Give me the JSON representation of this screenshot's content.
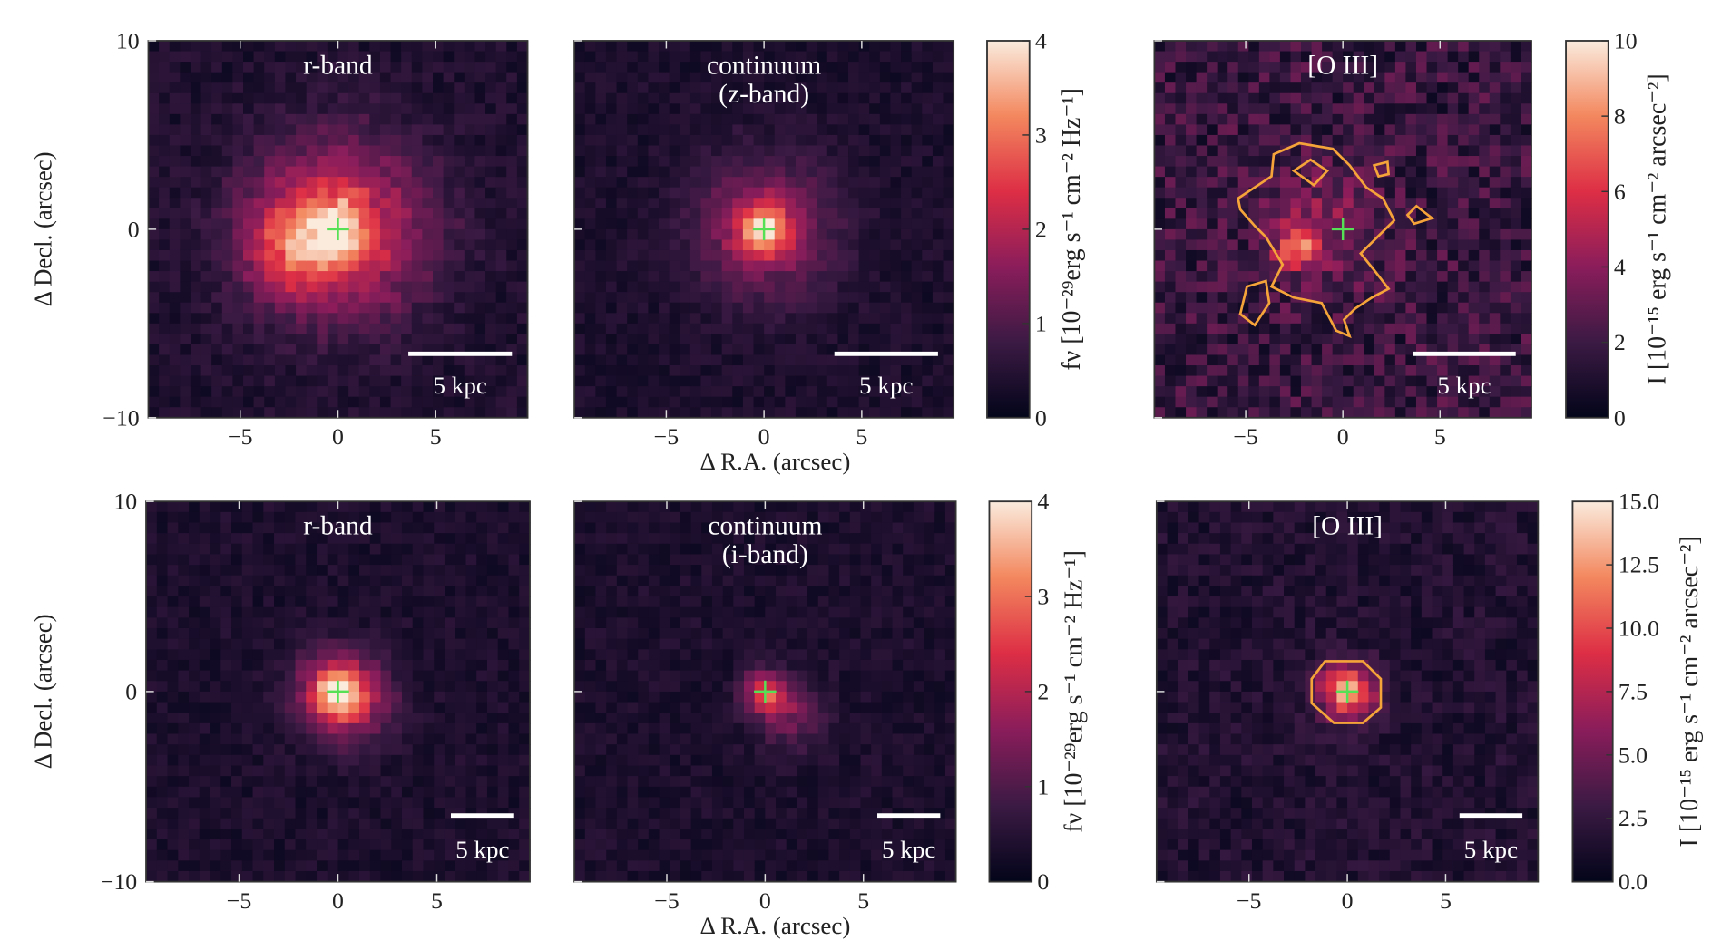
{
  "xlabel": "Δ R.A. (arcsec)",
  "ylabel": "Δ Decl. (arcsec)",
  "xlim": [
    -9.7,
    9.7
  ],
  "ylim": [
    -10,
    10
  ],
  "xticks": [
    {
      "value": -5,
      "label": "−5"
    },
    0,
    5
  ],
  "yticks": [
    {
      "value": -10,
      "label": "−10"
    },
    0,
    10
  ],
  "rows": [
    {
      "panels": [
        {
          "title": [
            "r-band"
          ],
          "scalebar": "5 kpc"
        },
        {
          "title": [
            "continuum",
            "(z-band)"
          ],
          "scalebar": "5 kpc"
        },
        {
          "title": [
            "[O III]"
          ],
          "scalebar": "5 kpc"
        }
      ],
      "colorbars": [
        {
          "label": "fν [10⁻²⁹erg s⁻¹ cm⁻² Hz⁻¹]",
          "lim": [
            0,
            4
          ],
          "ticks": [
            0,
            1,
            2,
            3,
            4
          ]
        },
        {
          "label": "I [10⁻¹⁵ erg s⁻¹ cm⁻² arcsec⁻²]",
          "lim": [
            0,
            10
          ],
          "ticks": [
            0,
            2,
            4,
            6,
            8,
            10
          ]
        }
      ]
    },
    {
      "panels": [
        {
          "title": [
            "r-band"
          ],
          "scalebar": "5 kpc"
        },
        {
          "title": [
            "continuum",
            "(i-band)"
          ],
          "scalebar": "5 kpc"
        },
        {
          "title": [
            "[O III]"
          ],
          "scalebar": "5 kpc"
        }
      ],
      "colorbars": [
        {
          "label": "fν [10⁻²⁹erg s⁻¹ cm⁻² Hz⁻¹]",
          "lim": [
            0,
            4
          ],
          "ticks": [
            0,
            1,
            2,
            3,
            4
          ]
        },
        {
          "label": "I [10⁻¹⁵ erg s⁻¹ cm⁻² arcsec⁻²]",
          "lim": [
            0,
            15
          ],
          "ticks": [
            {
              "value": 0,
              "label": "0.0"
            },
            2.5,
            {
              "value": 5,
              "label": "5.0"
            },
            7.5,
            {
              "value": 10,
              "label": "10.0"
            },
            12.5,
            {
              "value": 15,
              "label": "15.0"
            }
          ]
        }
      ]
    }
  ]
}
